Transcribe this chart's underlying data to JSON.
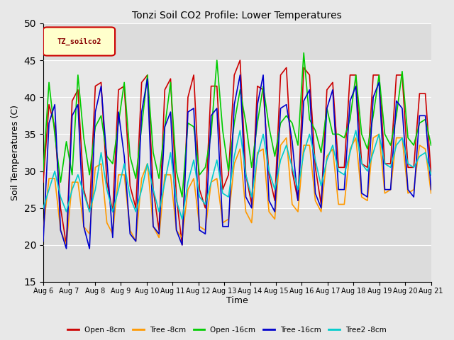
{
  "title": "Tonzi Soil CO2 Profile: Lower Temperatures",
  "xlabel": "Time",
  "ylabel": "Soil Temperatures (C)",
  "ylim": [
    15,
    50
  ],
  "yticks": [
    15,
    20,
    25,
    30,
    35,
    40,
    45,
    50
  ],
  "x_tick_labels": [
    "Aug 6",
    "Aug 7",
    "Aug 8",
    "Aug 9",
    "Aug 10",
    "Aug 11",
    "Aug 12",
    "Aug 13",
    "Aug 14",
    "Aug 15",
    "Aug 16",
    "Aug 17",
    "Aug 18",
    "Aug 19",
    "Aug 20",
    "Aug 21"
  ],
  "legend_label": "TZ_soilco2",
  "series_names": [
    "Open -8cm",
    "Tree -8cm",
    "Open -16cm",
    "Tree -16cm",
    "Tree2 -8cm"
  ],
  "series_colors": [
    "#cc0000",
    "#ff9900",
    "#00cc00",
    "#0000cc",
    "#00cccc"
  ],
  "fig_bg": "#e8e8e8",
  "plot_bg": "#dcdcdc",
  "band_color": "#e8e8e8",
  "band_low": 25,
  "band_high": 45,
  "open_8cm": [
    28.5,
    39.0,
    36.0,
    25.0,
    20.0,
    39.5,
    41.0,
    27.5,
    24.5,
    41.5,
    42.0,
    28.5,
    24.5,
    41.0,
    41.5,
    28.0,
    25.0,
    42.0,
    43.0,
    27.5,
    22.0,
    41.0,
    42.5,
    26.5,
    20.0,
    40.0,
    43.0,
    27.5,
    25.0,
    41.5,
    41.5,
    27.5,
    29.5,
    43.0,
    45.0,
    29.5,
    25.5,
    41.5,
    41.0,
    29.5,
    26.0,
    43.0,
    44.0,
    30.0,
    26.0,
    44.0,
    43.0,
    30.5,
    25.5,
    41.0,
    42.0,
    30.5,
    30.5,
    43.0,
    43.0,
    31.0,
    30.5,
    43.0,
    43.0,
    31.0,
    31.0,
    43.0,
    43.0,
    30.5,
    30.5,
    40.5,
    40.5,
    29.5
  ],
  "tree_8cm": [
    22.0,
    29.0,
    29.0,
    22.0,
    20.0,
    28.5,
    28.5,
    22.5,
    21.5,
    30.5,
    31.0,
    23.0,
    21.5,
    29.5,
    29.5,
    22.0,
    20.5,
    29.0,
    31.0,
    22.5,
    21.0,
    29.5,
    29.5,
    22.0,
    21.0,
    27.5,
    29.0,
    22.5,
    22.0,
    28.5,
    29.0,
    23.0,
    23.5,
    31.0,
    33.0,
    24.5,
    23.0,
    32.5,
    33.0,
    24.5,
    23.5,
    33.5,
    34.5,
    25.5,
    24.5,
    33.5,
    33.5,
    26.0,
    24.5,
    32.0,
    33.0,
    25.5,
    25.5,
    33.0,
    34.5,
    26.5,
    26.0,
    34.5,
    35.0,
    27.0,
    27.5,
    34.5,
    34.5,
    27.0,
    27.5,
    33.5,
    33.0,
    27.0
  ],
  "open_16cm": [
    30.0,
    42.0,
    35.0,
    28.5,
    34.0,
    29.5,
    43.0,
    34.5,
    29.5,
    36.0,
    37.5,
    32.0,
    31.0,
    36.5,
    42.0,
    32.0,
    29.0,
    36.0,
    43.0,
    32.5,
    29.0,
    36.0,
    42.0,
    30.0,
    26.5,
    36.5,
    36.0,
    29.5,
    30.5,
    35.0,
    45.0,
    35.5,
    30.0,
    36.5,
    41.0,
    36.5,
    30.5,
    36.5,
    41.5,
    36.0,
    32.0,
    36.5,
    37.5,
    36.5,
    33.5,
    46.0,
    37.0,
    35.5,
    32.5,
    38.5,
    35.0,
    35.0,
    34.5,
    37.0,
    43.0,
    35.0,
    33.0,
    37.5,
    43.0,
    35.0,
    33.5,
    37.5,
    43.5,
    34.5,
    33.5,
    36.5,
    37.0,
    33.5
  ],
  "tree_16cm": [
    20.5,
    36.5,
    39.0,
    22.0,
    19.5,
    37.5,
    39.0,
    22.5,
    19.5,
    38.0,
    41.5,
    31.5,
    21.0,
    38.0,
    32.0,
    21.5,
    20.5,
    38.0,
    42.5,
    22.5,
    21.5,
    36.0,
    38.0,
    22.0,
    20.0,
    38.0,
    38.5,
    22.0,
    21.5,
    37.5,
    38.5,
    22.5,
    22.5,
    39.0,
    43.0,
    26.5,
    25.0,
    39.0,
    43.0,
    26.0,
    24.5,
    38.5,
    39.0,
    34.0,
    26.0,
    39.5,
    41.0,
    27.0,
    25.0,
    38.5,
    41.0,
    27.5,
    27.5,
    39.5,
    41.5,
    27.0,
    26.5,
    40.0,
    42.0,
    27.5,
    27.5,
    39.5,
    38.5,
    27.5,
    26.5,
    37.5,
    37.5,
    27.5
  ],
  "tree2_8cm": [
    25.0,
    27.5,
    30.0,
    26.5,
    24.5,
    27.5,
    29.5,
    27.0,
    24.5,
    27.5,
    32.5,
    27.5,
    24.5,
    27.5,
    31.0,
    26.5,
    24.5,
    27.5,
    31.0,
    27.5,
    24.5,
    28.5,
    32.5,
    26.0,
    23.5,
    28.5,
    31.5,
    26.5,
    25.5,
    28.5,
    31.5,
    27.0,
    26.5,
    32.0,
    35.5,
    29.5,
    26.5,
    32.0,
    35.0,
    30.0,
    27.5,
    31.5,
    33.5,
    30.5,
    27.5,
    32.5,
    35.0,
    31.5,
    28.0,
    31.5,
    33.5,
    30.0,
    29.5,
    32.5,
    35.5,
    31.0,
    30.0,
    32.5,
    35.0,
    31.0,
    30.5,
    33.5,
    34.5,
    31.0,
    30.5,
    32.0,
    32.5,
    29.5
  ]
}
